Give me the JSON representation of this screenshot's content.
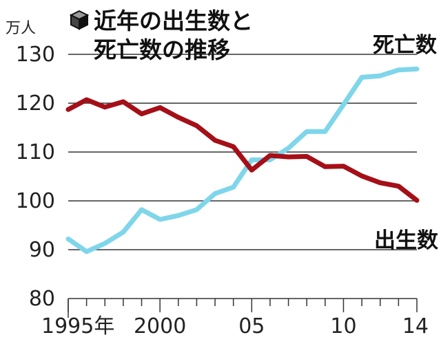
{
  "chart_data": {
    "type": "line",
    "title_lines": [
      "近年の出生数と",
      "死亡数の推移"
    ],
    "title_icon": "cube-icon",
    "y_unit": "万人",
    "ylim": [
      80,
      130
    ],
    "y_ticks": [
      80,
      90,
      100,
      110,
      120,
      130
    ],
    "xlim": [
      1995,
      2014
    ],
    "x_ticks": [
      {
        "value": 1995,
        "label": "1995年"
      },
      {
        "value": 2000,
        "label": "2000"
      },
      {
        "value": 2005,
        "label": "05"
      },
      {
        "value": 2010,
        "label": "10"
      },
      {
        "value": 2014,
        "label": "14"
      }
    ],
    "grid": "horizontal",
    "series": [
      {
        "name": "出生数",
        "color": "#a50f18",
        "x": [
          1995,
          1996,
          1997,
          1998,
          1999,
          2000,
          2001,
          2002,
          2003,
          2004,
          2005,
          2006,
          2007,
          2008,
          2009,
          2010,
          2011,
          2012,
          2013,
          2014
        ],
        "values": [
          118.7,
          120.7,
          119.2,
          120.3,
          117.8,
          119.1,
          117.1,
          115.4,
          112.4,
          111.1,
          106.3,
          109.3,
          109.0,
          109.1,
          107.0,
          107.1,
          105.1,
          103.7,
          103.0,
          100.1
        ]
      },
      {
        "name": "死亡数",
        "color": "#7fd6ea",
        "x": [
          1995,
          1996,
          1997,
          1998,
          1999,
          2000,
          2001,
          2002,
          2003,
          2004,
          2005,
          2006,
          2007,
          2008,
          2009,
          2010,
          2011,
          2012,
          2013,
          2014
        ],
        "values": [
          92.2,
          89.6,
          91.3,
          93.6,
          98.2,
          96.2,
          97.0,
          98.2,
          101.5,
          102.8,
          108.4,
          108.4,
          110.8,
          114.2,
          114.2,
          119.7,
          125.3,
          125.6,
          126.8,
          127.0
        ]
      }
    ]
  }
}
